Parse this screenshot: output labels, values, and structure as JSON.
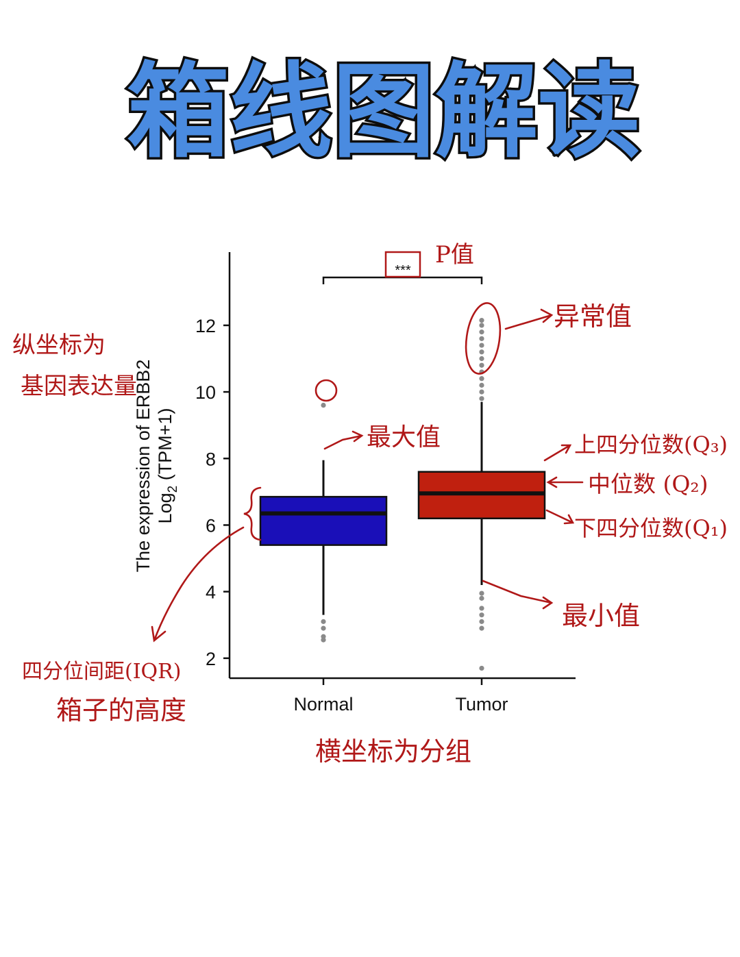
{
  "title": "箱线图解读",
  "colors": {
    "title_fill": "#4a8be0",
    "title_stroke": "#0d0d0d",
    "normal_box": "#1a0fb8",
    "tumor_box": "#c0200f",
    "outlier": "#8a8a8a",
    "annotation": "#b01818"
  },
  "chart_data": {
    "type": "box",
    "title": "",
    "ylabel_line1": "The expression of ERBB2",
    "ylabel_line2_base": "Log",
    "ylabel_line2_sub": "2",
    "ylabel_line2_rest": " (TPM+1)",
    "xlabel": "",
    "ylim": [
      1.4,
      14.2
    ],
    "yticks": [
      2,
      4,
      6,
      8,
      10,
      12
    ],
    "ytick_labels": [
      "2",
      "4",
      "6",
      "8",
      "10",
      "12"
    ],
    "categories": [
      "Normal",
      "Tumor"
    ],
    "significance": "***",
    "boxes": [
      {
        "category": "Normal",
        "q1": 5.4,
        "median": 6.35,
        "q3": 6.85,
        "whisker_low": 3.3,
        "whisker_high": 7.95,
        "outliers": [
          2.55,
          2.65,
          2.9,
          3.1,
          9.6
        ]
      },
      {
        "category": "Tumor",
        "q1": 6.2,
        "median": 6.95,
        "q3": 7.6,
        "whisker_low": 4.2,
        "whisker_high": 9.7,
        "outliers": [
          1.7,
          2.9,
          3.1,
          3.3,
          3.5,
          3.8,
          3.95,
          9.8,
          10.0,
          10.2,
          10.4,
          10.6,
          10.8,
          11.0,
          11.2,
          11.4,
          11.6,
          11.8,
          12.0,
          12.15
        ]
      }
    ]
  },
  "annotations": {
    "p_value": "P值",
    "outlier_label": "异常值",
    "max_label": "最大值",
    "min_label": "最小值",
    "q3_label": "上四分位数(Q₃)",
    "median_label": "中位数 (Q₂)",
    "q1_label": "下四分位数(Q₁)",
    "y_axis_line1": "纵坐标为",
    "y_axis_line2": "基因表达量",
    "iqr_line1": "四分位间距(IQR)",
    "iqr_line2": "箱子的高度",
    "x_axis_label": "横坐标为分组"
  }
}
